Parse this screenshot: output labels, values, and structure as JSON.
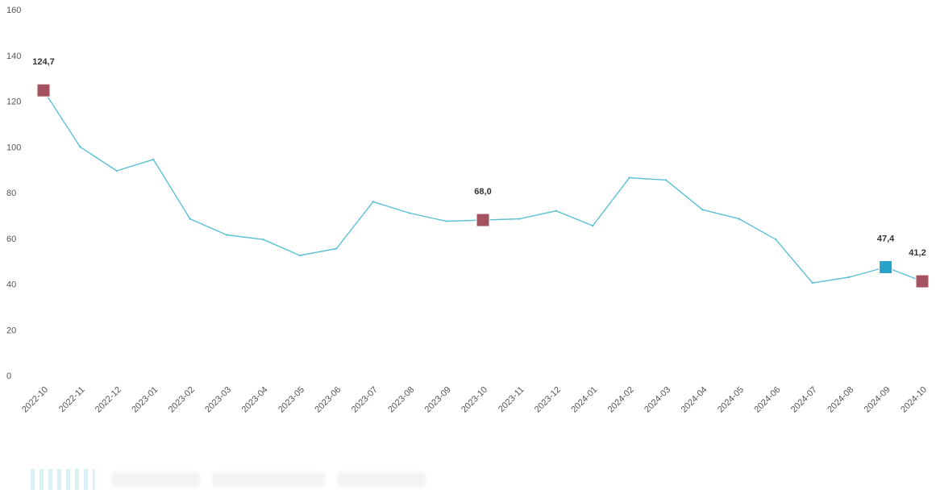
{
  "chart_data": {
    "type": "line",
    "title": "",
    "xlabel": "",
    "ylabel": "",
    "ylim": [
      0,
      160
    ],
    "yticks": [
      0,
      20,
      40,
      60,
      80,
      100,
      120,
      140,
      160
    ],
    "grid": false,
    "categories": [
      "2022-10",
      "2022-11",
      "2022-12",
      "2023-01",
      "2023-02",
      "2023-03",
      "2023-04",
      "2023-05",
      "2023-06",
      "2023-07",
      "2023-08",
      "2023-09",
      "2023-10",
      "2023-11",
      "2023-12",
      "2024-01",
      "2024-02",
      "2024-03",
      "2024-04",
      "2024-05",
      "2024-06",
      "2024-07",
      "2024-08",
      "2024-09",
      "2024-10"
    ],
    "series": [
      {
        "values": [
          124.7,
          100,
          89.5,
          94.5,
          68.5,
          61.5,
          59.5,
          52.5,
          55.5,
          76,
          71,
          67.5,
          68.0,
          68.5,
          72,
          65.5,
          86.5,
          85.5,
          72.5,
          68.5,
          59.5,
          40.5,
          43,
          47.4,
          41.2
        ],
        "color": "#5bc0d4"
      }
    ],
    "highlights": [
      {
        "index": 0,
        "label": "124,7",
        "color": "#a4525f"
      },
      {
        "index": 12,
        "label": "68,0",
        "color": "#a4525f"
      },
      {
        "index": 23,
        "label": "47,4",
        "color": "#2aa3c8"
      },
      {
        "index": 24,
        "label": "41,2",
        "color": "#a4525f"
      }
    ]
  }
}
